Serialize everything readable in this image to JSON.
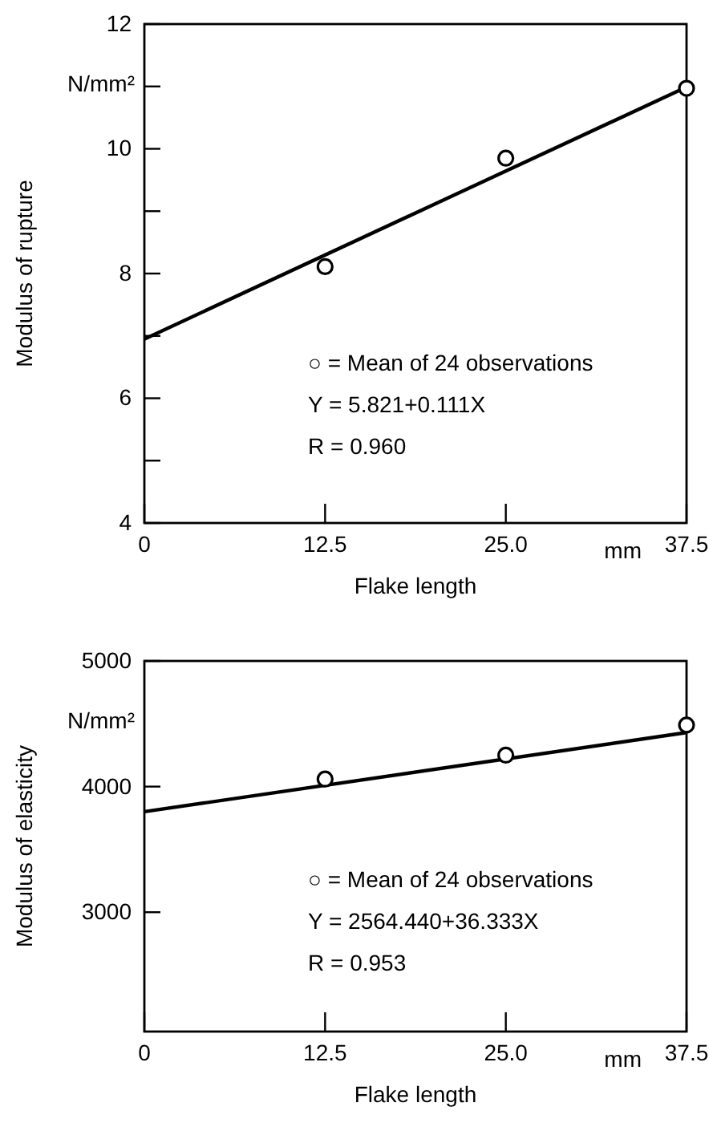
{
  "chart_data": [
    {
      "type": "scatter",
      "xlabel": "Flake length",
      "ylabel": "Modulus of rupture",
      "xlim": [
        0,
        37.5
      ],
      "xticks": [
        0,
        12.5,
        {
          "value": 25,
          "label": "25.0"
        },
        37.5
      ],
      "ylim": [
        4,
        12
      ],
      "yticks": [
        4,
        {
          "value": 5,
          "label": null
        },
        6,
        {
          "value": 7,
          "label": null
        },
        8,
        {
          "value": 9,
          "label": null
        },
        10,
        {
          "value": 11,
          "label": null
        },
        12
      ],
      "marker": "circle",
      "grid": false,
      "series": [
        {
          "color": "#000000",
          "x": [
            12.5,
            25,
            37.5
          ],
          "values": [
            8.11,
            9.85,
            10.97
          ]
        },
        {
          "type": "line",
          "color": "#000000",
          "marker": "none",
          "x": [
            0,
            37.5
          ],
          "values": [
            6.95,
            10.99
          ]
        }
      ],
      "annotations": [
        "N/mm²",
        "mm",
        "○ = Mean of 24 observations",
        "Y = 5.821+0.111X",
        "R = 0.960"
      ]
    },
    {
      "type": "scatter",
      "xlabel": "Flake length",
      "ylabel": "Modulus of elasticity",
      "xlim": [
        0,
        37.5
      ],
      "xticks": [
        0,
        12.5,
        {
          "value": 25,
          "label": "25.0"
        },
        37.5
      ],
      "ylim": [
        2050,
        5000
      ],
      "yticks": [
        3000,
        4000,
        5000
      ],
      "marker": "circle",
      "grid": false,
      "series": [
        {
          "color": "#000000",
          "x": [
            12.5,
            25,
            37.5
          ],
          "values": [
            4060,
            4250,
            4490
          ]
        },
        {
          "type": "line",
          "color": "#000000",
          "marker": "none",
          "x": [
            0,
            37.5
          ],
          "values": [
            3800,
            4430
          ]
        }
      ],
      "annotations": [
        "N/mm²",
        "mm",
        "○ = Mean of 24 observations",
        "Y = 2564.440+36.333X",
        "R = 0.953"
      ]
    }
  ]
}
